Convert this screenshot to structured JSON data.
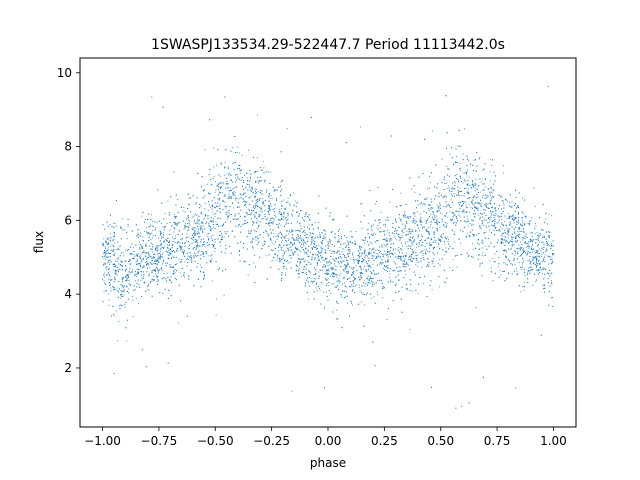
{
  "chart_data": {
    "type": "scatter",
    "title": "1SWASPJ133534.29-522447.7 Period 11113442.0s",
    "xlabel": "phase",
    "ylabel": "flux",
    "xlim": [
      -1.1,
      1.1
    ],
    "ylim": [
      0.4,
      10.4
    ],
    "xticks": [
      -1.0,
      -0.75,
      -0.5,
      -0.25,
      0.0,
      0.25,
      0.5,
      0.75,
      1.0
    ],
    "xtick_labels": [
      "−1.00",
      "−0.75",
      "−0.50",
      "−0.25",
      "0.00",
      "0.25",
      "0.50",
      "0.75",
      "1.00"
    ],
    "yticks": [
      2,
      4,
      6,
      8,
      10
    ],
    "ytick_labels": [
      "2",
      "4",
      "6",
      "8",
      "10"
    ],
    "grid": false,
    "legend": "none",
    "point_color": "#1f77b4",
    "series": [
      {
        "x": [
          -1.0,
          -0.95,
          -0.9,
          -0.85,
          -0.8,
          -0.75,
          -0.7,
          -0.65,
          -0.6,
          -0.55,
          -0.5,
          -0.45,
          -0.4,
          -0.35,
          -0.3,
          -0.25,
          -0.2,
          -0.15,
          -0.1,
          -0.05,
          0.0,
          0.05,
          0.1,
          0.15,
          0.2,
          0.25,
          0.3,
          0.35,
          0.4,
          0.45,
          0.5,
          0.55,
          0.6,
          0.65,
          0.7,
          0.75,
          0.8,
          0.85,
          0.9,
          0.95,
          1.0
        ],
        "y": [
          5.0,
          4.8,
          4.6,
          4.8,
          5.0,
          5.1,
          5.2,
          5.4,
          5.6,
          5.7,
          6.0,
          6.5,
          6.6,
          6.3,
          6.2,
          5.9,
          5.6,
          5.4,
          5.2,
          5.0,
          4.9,
          4.8,
          4.6,
          4.8,
          5.0,
          5.1,
          5.2,
          5.4,
          5.6,
          5.7,
          6.0,
          6.5,
          6.6,
          6.3,
          6.2,
          5.9,
          5.6,
          5.4,
          5.2,
          5.0,
          5.0
        ],
        "spread": [
          0.7,
          0.8,
          0.8,
          0.7,
          0.7,
          0.7,
          0.8,
          0.8,
          0.8,
          0.9,
          1.0,
          1.0,
          1.0,
          1.0,
          0.9,
          0.8,
          0.8,
          0.7,
          0.7,
          0.7,
          0.7,
          0.8,
          0.8,
          0.7,
          0.7,
          0.7,
          0.8,
          0.8,
          0.8,
          0.9,
          1.0,
          1.0,
          1.0,
          1.0,
          0.9,
          0.8,
          0.8,
          0.7,
          0.7,
          0.7,
          0.7
        ]
      }
    ]
  }
}
